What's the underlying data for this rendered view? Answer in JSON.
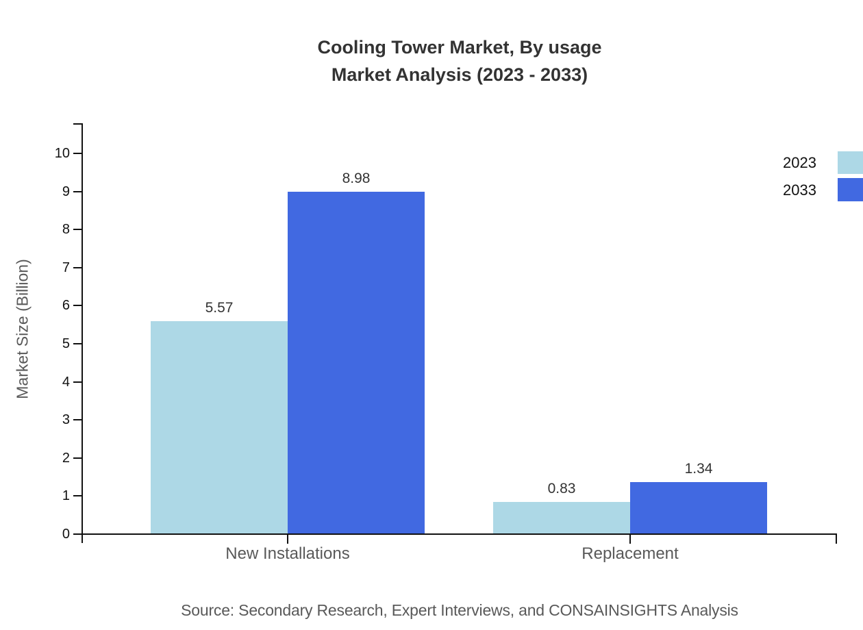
{
  "title": {
    "line1": "Cooling Tower Market, By usage",
    "line2": "Market Analysis (2023 - 2033)"
  },
  "source": "Source: Secondary Research, Expert Interviews, and CONSAINSIGHTS Analysis",
  "chart_data": {
    "type": "bar",
    "categories": [
      "New Installations",
      "Replacement"
    ],
    "series": [
      {
        "name": "2023",
        "values": [
          5.57,
          0.83
        ],
        "color": "#ADD8E6"
      },
      {
        "name": "2033",
        "values": [
          8.98,
          1.34
        ],
        "color": "#4169E1"
      }
    ],
    "title": "Cooling Tower Market, By usage Market Analysis (2023 - 2033)",
    "xlabel": "",
    "ylabel": "Market Size (Billion)",
    "ylim": [
      0,
      10
    ],
    "ytick_step": 1,
    "grid": false,
    "legend_position": "top-right",
    "value_labels": [
      "5.57",
      "8.98",
      "0.83",
      "1.34"
    ]
  },
  "colors": {
    "axis": "#111111",
    "title_text": "#333333",
    "category_text": "#595959",
    "value_text": "#333333",
    "series_2023": "#ADD8E6",
    "series_2033": "#4169E1",
    "background": "#ffffff"
  }
}
